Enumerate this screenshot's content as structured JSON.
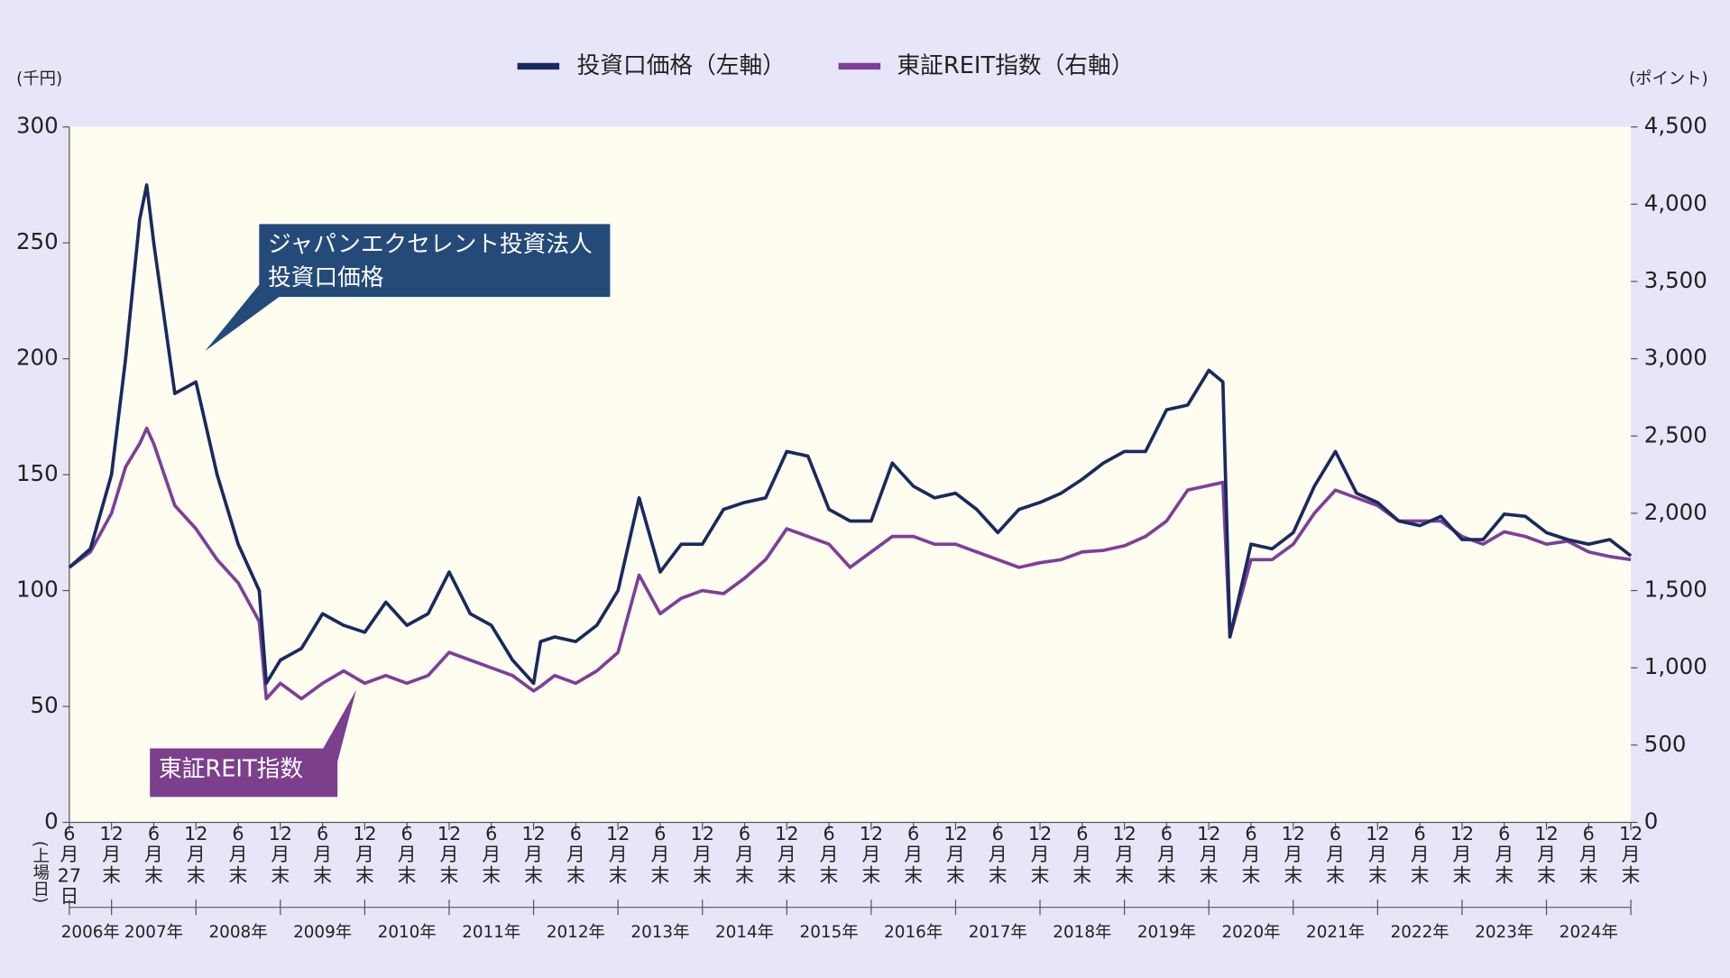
{
  "chart_data": {
    "type": "line",
    "legend": "top",
    "y_label": "(千円)",
    "y2_label": "(ポイント)",
    "listing_note": "(上場日)",
    "annotations": [
      {
        "lines": [
          "ジャパンエクセレント投資法人",
          "投資口価格"
        ],
        "series": 0
      },
      {
        "lines": [
          "東証REIT指数"
        ],
        "series": 1
      }
    ],
    "ylim": [
      0,
      300
    ],
    "yticks": [
      0,
      50,
      100,
      150,
      200,
      250,
      300
    ],
    "y2lim": [
      0,
      4500
    ],
    "y2ticks": [
      0,
      500,
      {
        "value": 1000,
        "label": "1,000"
      },
      {
        "value": 1500,
        "label": "1,500"
      },
      {
        "value": 2000,
        "label": "2,000"
      },
      {
        "value": 2500,
        "label": "2,500"
      },
      {
        "value": 3000,
        "label": "3,000"
      },
      {
        "value": 3500,
        "label": "3,500"
      },
      {
        "value": 4000,
        "label": "4,000"
      },
      {
        "value": 4500,
        "label": "4,500"
      }
    ],
    "xlim": [
      "2006-06",
      "2024-12"
    ],
    "xticks": [
      {
        "value": "2006-06",
        "label": "6月27日"
      },
      {
        "value": "2006-12",
        "label": "12月末"
      },
      {
        "value": "2007-06",
        "label": "6月末"
      },
      {
        "value": "2007-12",
        "label": "12月末"
      },
      {
        "value": "2008-06",
        "label": "6月末"
      },
      {
        "value": "2008-12",
        "label": "12月末"
      },
      {
        "value": "2009-06",
        "label": "6月末"
      },
      {
        "value": "2009-12",
        "label": "12月末"
      },
      {
        "value": "2010-06",
        "label": "6月末"
      },
      {
        "value": "2010-12",
        "label": "12月末"
      },
      {
        "value": "2011-06",
        "label": "6月末"
      },
      {
        "value": "2011-12",
        "label": "12月末"
      },
      {
        "value": "2012-06",
        "label": "6月末"
      },
      {
        "value": "2012-12",
        "label": "12月末"
      },
      {
        "value": "2013-06",
        "label": "6月末"
      },
      {
        "value": "2013-12",
        "label": "12月末"
      },
      {
        "value": "2014-06",
        "label": "6月末"
      },
      {
        "value": "2014-12",
        "label": "12月末"
      },
      {
        "value": "2015-06",
        "label": "6月末"
      },
      {
        "value": "2015-12",
        "label": "12月末"
      },
      {
        "value": "2016-06",
        "label": "6月末"
      },
      {
        "value": "2016-12",
        "label": "12月末"
      },
      {
        "value": "2017-06",
        "label": "6月末"
      },
      {
        "value": "2017-12",
        "label": "12月末"
      },
      {
        "value": "2018-06",
        "label": "6月末"
      },
      {
        "value": "2018-12",
        "label": "12月末"
      },
      {
        "value": "2019-06",
        "label": "6月末"
      },
      {
        "value": "2019-12",
        "label": "12月末"
      },
      {
        "value": "2020-06",
        "label": "6月末"
      },
      {
        "value": "2020-12",
        "label": "12月末"
      },
      {
        "value": "2021-06",
        "label": "6月末"
      },
      {
        "value": "2021-12",
        "label": "12月末"
      },
      {
        "value": "2022-06",
        "label": "6月末"
      },
      {
        "value": "2022-12",
        "label": "12月末"
      },
      {
        "value": "2023-06",
        "label": "6月末"
      },
      {
        "value": "2023-12",
        "label": "12月末"
      },
      {
        "value": "2024-06",
        "label": "6月末"
      },
      {
        "value": "2024-12",
        "label": "12月末"
      }
    ],
    "year_labels": [
      "2006年",
      "2007年",
      "2008年",
      "2009年",
      "2010年",
      "2011年",
      "2012年",
      "2013年",
      "2014年",
      "2015年",
      "2016年",
      "2017年",
      "2018年",
      "2019年",
      "2020年",
      "2021年",
      "2022年",
      "2023年",
      "2024年"
    ],
    "x": [
      "2006-06",
      "2006-09",
      "2006-12",
      "2007-02",
      "2007-04",
      "2007-05",
      "2007-06",
      "2007-09",
      "2007-12",
      "2008-03",
      "2008-06",
      "2008-09",
      "2008-10",
      "2008-12",
      "2009-03",
      "2009-06",
      "2009-09",
      "2009-12",
      "2010-03",
      "2010-06",
      "2010-09",
      "2010-12",
      "2011-03",
      "2011-06",
      "2011-09",
      "2011-12",
      "2012-01",
      "2012-03",
      "2012-06",
      "2012-09",
      "2012-12",
      "2013-03",
      "2013-06",
      "2013-09",
      "2013-12",
      "2014-03",
      "2014-06",
      "2014-09",
      "2014-12",
      "2015-03",
      "2015-06",
      "2015-09",
      "2015-12",
      "2016-03",
      "2016-06",
      "2016-09",
      "2016-12",
      "2017-03",
      "2017-06",
      "2017-09",
      "2017-12",
      "2018-03",
      "2018-06",
      "2018-09",
      "2018-12",
      "2019-03",
      "2019-06",
      "2019-09",
      "2019-12",
      "2020-02",
      "2020-03",
      "2020-06",
      "2020-09",
      "2020-12",
      "2021-03",
      "2021-06",
      "2021-09",
      "2021-12",
      "2022-03",
      "2022-06",
      "2022-09",
      "2022-12",
      "2023-03",
      "2023-06",
      "2023-09",
      "2023-12",
      "2024-03",
      "2024-06",
      "2024-09",
      "2024-12"
    ],
    "series": [
      {
        "name": "投資口価格（左軸）",
        "color": "#1a2a5e",
        "axis": "y",
        "values": [
          110,
          118,
          150,
          200,
          260,
          275,
          250,
          185,
          190,
          150,
          120,
          100,
          60,
          70,
          75,
          90,
          85,
          82,
          95,
          85,
          90,
          108,
          90,
          85,
          70,
          60,
          78,
          80,
          78,
          85,
          100,
          140,
          108,
          120,
          120,
          135,
          138,
          140,
          160,
          158,
          135,
          130,
          130,
          155,
          145,
          140,
          142,
          135,
          125,
          135,
          138,
          142,
          148,
          155,
          160,
          160,
          178,
          180,
          195,
          190,
          80,
          120,
          118,
          125,
          145,
          160,
          142,
          138,
          130,
          128,
          132,
          122,
          122,
          133,
          132,
          125,
          122,
          120,
          122,
          115
        ]
      },
      {
        "name": "東証REIT指数（右軸）",
        "color": "#7d3f98",
        "axis": "y2",
        "values": [
          1650,
          1750,
          2000,
          2300,
          2450,
          2550,
          2450,
          2050,
          1900,
          1700,
          1550,
          1300,
          800,
          900,
          800,
          900,
          980,
          900,
          950,
          900,
          950,
          1100,
          1050,
          1000,
          950,
          850,
          880,
          950,
          900,
          980,
          1100,
          1600,
          1350,
          1450,
          1500,
          1480,
          1580,
          1700,
          1900,
          1850,
          1800,
          1650,
          1750,
          1850,
          1850,
          1800,
          1800,
          1750,
          1700,
          1650,
          1680,
          1700,
          1750,
          1760,
          1790,
          1850,
          1950,
          2150,
          2180,
          2200,
          1200,
          1700,
          1700,
          1800,
          2000,
          2150,
          2100,
          2050,
          1950,
          1950,
          1950,
          1850,
          1800,
          1880,
          1850,
          1800,
          1820,
          1750,
          1720,
          1700
        ]
      }
    ]
  }
}
